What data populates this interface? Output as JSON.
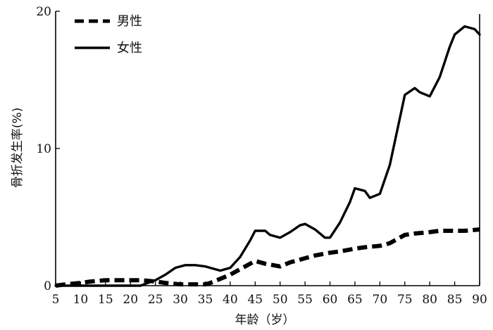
{
  "chart_data": {
    "type": "line",
    "title": "",
    "xlabel": "年龄（岁）",
    "ylabel": "骨折发生率(%)",
    "xlim": [
      5,
      90
    ],
    "ylim": [
      0,
      20
    ],
    "x_ticks": [
      5,
      10,
      15,
      20,
      25,
      30,
      35,
      40,
      45,
      50,
      55,
      60,
      65,
      70,
      75,
      80,
      85,
      90
    ],
    "y_ticks": [
      0,
      10,
      20
    ],
    "grid": false,
    "legend": "top-left",
    "series": [
      {
        "name": "男性",
        "style": "dashed",
        "color": "#000000",
        "x": [
          5,
          7,
          10,
          12,
          15,
          17,
          20,
          22,
          25,
          27,
          30,
          32,
          35,
          36,
          38,
          40,
          42,
          45,
          47,
          50,
          52,
          55,
          57,
          60,
          62,
          65,
          67,
          70,
          72,
          75,
          77,
          80,
          82,
          85,
          87,
          90
        ],
        "y": [
          0,
          0.1,
          0.2,
          0.3,
          0.4,
          0.4,
          0.4,
          0.4,
          0.3,
          0.2,
          0.1,
          0.1,
          0.1,
          0.2,
          0.5,
          0.8,
          1.2,
          1.8,
          1.6,
          1.4,
          1.7,
          2.0,
          2.2,
          2.4,
          2.5,
          2.7,
          2.8,
          2.9,
          3.1,
          3.7,
          3.8,
          3.9,
          4.0,
          4.0,
          4.0,
          4.1
        ]
      },
      {
        "name": "女性",
        "style": "solid",
        "color": "#000000",
        "x": [
          5,
          7,
          10,
          12,
          15,
          17,
          20,
          22,
          25,
          27,
          29,
          31,
          33,
          35,
          37,
          38,
          40,
          42,
          44,
          45,
          47,
          48,
          50,
          52,
          54,
          55,
          57,
          59,
          60,
          62,
          64,
          65,
          67,
          68,
          70,
          72,
          74,
          75,
          77,
          78,
          80,
          82,
          84,
          85,
          87,
          89,
          90
        ],
        "y": [
          0,
          0,
          0,
          0,
          0,
          0,
          0,
          0,
          0.4,
          0.8,
          1.3,
          1.5,
          1.5,
          1.4,
          1.2,
          1.1,
          1.3,
          2.1,
          3.3,
          4.0,
          4.0,
          3.7,
          3.5,
          3.9,
          4.4,
          4.5,
          4.1,
          3.5,
          3.5,
          4.6,
          6.1,
          7.1,
          6.9,
          6.4,
          6.7,
          8.8,
          12.2,
          13.9,
          14.4,
          14.1,
          13.8,
          15.2,
          17.4,
          18.3,
          18.9,
          18.7,
          18.3
        ]
      }
    ]
  }
}
